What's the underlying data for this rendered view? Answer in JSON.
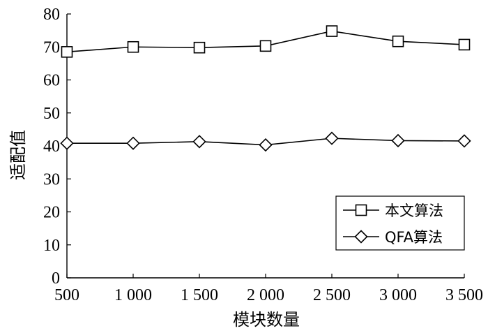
{
  "chart_data": {
    "type": "line",
    "title": "",
    "xlabel": "模块数量",
    "ylabel": "适配值",
    "categories": [
      "500",
      "1 000",
      "1 500",
      "2 000",
      "2 500",
      "3 000",
      "3 500"
    ],
    "x": [
      500,
      1000,
      1500,
      2000,
      2500,
      3000,
      3500
    ],
    "xlim": [
      500,
      3500
    ],
    "ylim": [
      0,
      80
    ],
    "yticks": [
      "0",
      "10",
      "20",
      "30",
      "40",
      "50",
      "60",
      "70",
      "80"
    ],
    "grid": false,
    "legend_position": "lower-right",
    "series": [
      {
        "name": "本文算法",
        "marker": "square",
        "values": [
          68.5,
          70.0,
          69.8,
          70.3,
          74.8,
          71.7,
          70.7
        ]
      },
      {
        "name": "QFA算法",
        "marker": "diamond",
        "values": [
          40.8,
          40.8,
          41.3,
          40.3,
          42.3,
          41.6,
          41.5
        ]
      }
    ]
  }
}
